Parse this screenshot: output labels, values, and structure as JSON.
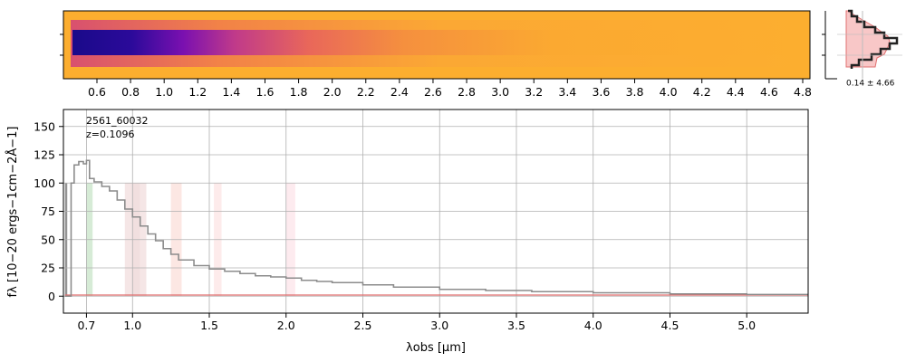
{
  "chart_data": [
    {
      "type": "heatmap",
      "colormap": "plasma (2D spectrum, light orange background, dark-blue core)",
      "x_tick_labels": [
        "0.6",
        "0.8",
        "1.0",
        "1.2",
        "1.4",
        "1.6",
        "1.8",
        "2.0",
        "2.2",
        "2.4",
        "2.6",
        "2.8",
        "3.0",
        "3.2",
        "3.4",
        "3.6",
        "3.8",
        "4.0",
        "4.2",
        "4.4",
        "4.6",
        "4.8"
      ]
    },
    {
      "type": "histogram",
      "annotation": "0.14 ± 4.66"
    },
    {
      "type": "line",
      "label_id": "2561_60032",
      "label_z": "z=0.1096",
      "xlabel": "λobs [μm]",
      "ylabel": "fλ [10−20 ergs−1cm−2Å−1]",
      "xlim": [
        0.55,
        5.4
      ],
      "ylim": [
        -15,
        165
      ],
      "grid": true,
      "x_tick_labels": [
        "0.7",
        "1.0",
        "1.5",
        "2.0",
        "2.5",
        "3.0",
        "3.5",
        "4.0",
        "4.5",
        "5.0"
      ],
      "y_ticks": [
        0,
        25,
        50,
        75,
        100,
        125,
        150
      ],
      "flux_color": "#8c8c8c",
      "model_color": "#e07070",
      "x": [
        0.56,
        0.6,
        0.62,
        0.65,
        0.68,
        0.7,
        0.72,
        0.75,
        0.8,
        0.85,
        0.9,
        0.95,
        1.0,
        1.05,
        1.1,
        1.15,
        1.2,
        1.25,
        1.3,
        1.4,
        1.5,
        1.6,
        1.7,
        1.8,
        1.9,
        2.0,
        2.1,
        2.2,
        2.3,
        2.5,
        2.7,
        3.0,
        3.3,
        3.6,
        4.0,
        4.5,
        5.0,
        5.4
      ],
      "y": [
        0,
        100,
        116,
        119,
        117,
        120,
        104,
        101,
        97,
        93,
        85,
        77,
        70,
        62,
        55,
        49,
        42,
        37,
        32,
        27,
        24,
        22,
        20,
        18,
        17,
        16,
        14,
        13,
        12,
        10,
        8,
        6,
        5,
        4,
        3,
        2,
        1.5,
        1
      ],
      "model_y": [
        1,
        1,
        1,
        1,
        1,
        1,
        1,
        1,
        1,
        1,
        1,
        1,
        1,
        1,
        1,
        1,
        1,
        1,
        1,
        1,
        1,
        1,
        1,
        1,
        1,
        1,
        1,
        1,
        1,
        1,
        1,
        1,
        1,
        1,
        1,
        1,
        1,
        1
      ],
      "shaded_bands": [
        {
          "x0": 0.56,
          "x1": 0.575,
          "color": "#808080"
        },
        {
          "x0": 0.7,
          "x1": 0.74,
          "color": "#cfe7cf"
        },
        {
          "x0": 0.95,
          "x1": 1.0,
          "color": "#f3e2e2"
        },
        {
          "x0": 1.0,
          "x1": 1.05,
          "color": "#eed9d9"
        },
        {
          "x0": 1.05,
          "x1": 1.09,
          "color": "#f3e2e2"
        },
        {
          "x0": 1.25,
          "x1": 1.32,
          "color": "#fbe3de"
        },
        {
          "x0": 1.53,
          "x1": 1.58,
          "color": "#fde8e8"
        },
        {
          "x0": 2.0,
          "x1": 2.06,
          "color": "#fde8ec"
        }
      ]
    }
  ]
}
